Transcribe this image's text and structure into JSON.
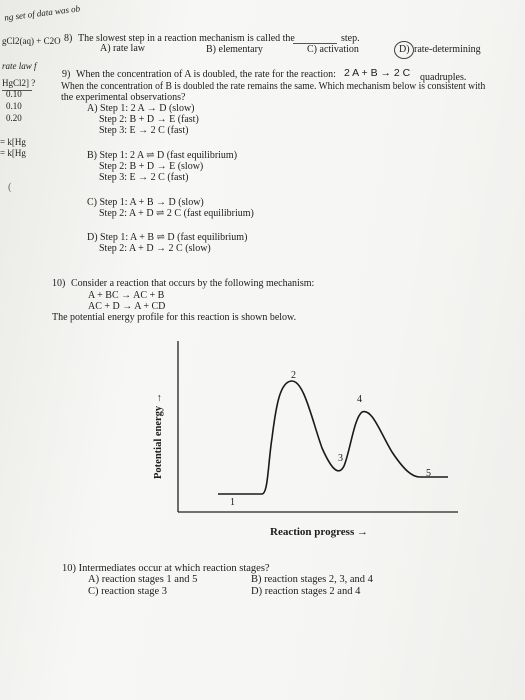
{
  "margin": {
    "top": "ng set of data was ob",
    "reaction": "gCl2(aq) + C2O",
    "ratelaw": "rate law f",
    "conc_header": "HgCl2] ?",
    "conc_values": [
      "0.10",
      "0.10",
      "0.20"
    ],
    "k1": "= k[Hg",
    "k2": "= k[Hg",
    "paren": "("
  },
  "q8": {
    "number": "8)",
    "text": "The slowest step in a reaction mechanism is called the",
    "blank_suffix": "step.",
    "options": {
      "a": "A) rate law",
      "b": "B) elementary",
      "c": "C) activation",
      "d_letter": "D)",
      "d_text": "rate-determining"
    }
  },
  "q9": {
    "number": "9)",
    "line1": "When the concentration of A is doubled, the rate for the reaction:",
    "reaction": "2 A + B → 2 C",
    "line1_end": "quadruples.",
    "line2": "When the concentration of B is doubled the rate remains the same. Which mechanism below is consistent with",
    "line3": "the experimental observations?",
    "mechanisms": [
      {
        "steps": [
          "A) Step 1:  2 A → D (slow)",
          "Step 2:  B + D → E (fast)",
          "Step 3:  E → 2 C (fast)"
        ]
      },
      {
        "steps": [
          "B) Step 1:  2 A ⇌ D (fast equilibrium)",
          "Step 2:  B + D → E (slow)",
          "Step 3:  E → 2 C (fast)"
        ]
      },
      {
        "steps": [
          "C) Step 1:  A + B → D (slow)",
          "Step 2:  A + D ⇌ 2 C (fast equilibrium)"
        ]
      },
      {
        "steps": [
          "D) Step 1:  A + B ⇌ D (fast equilibrium)",
          "Step 2:  A + D → 2 C (slow)"
        ]
      }
    ]
  },
  "q10a": {
    "number": "10)",
    "text": "Consider a reaction that occurs by the following mechanism:",
    "steps": [
      "A + BC → AC + B",
      "AC + D → A + CD"
    ],
    "profile_text": "The potential energy profile for this reaction is shown below."
  },
  "diagram": {
    "ylabel": "Potential energy →",
    "xlabel": "Reaction progress →",
    "labels": [
      "1",
      "2",
      "3",
      "4",
      "5"
    ]
  },
  "q10b": {
    "question": "10) Intermediates occur at which reaction stages?",
    "options": {
      "a": "A) reaction stages 1 and 5",
      "b": "B) reaction stages 2, 3, and 4",
      "c": "C) reaction stage 3",
      "d": "D) reaction stages 2 and 4"
    }
  }
}
